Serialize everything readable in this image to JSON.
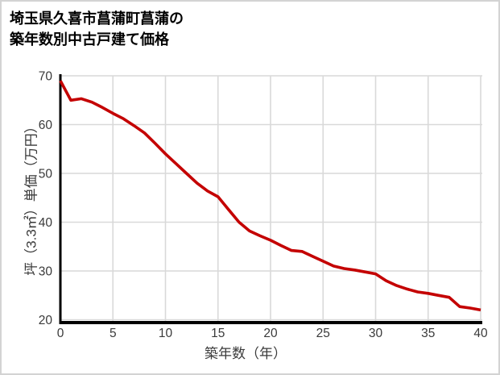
{
  "page": {
    "title_line1": "埼玉県久喜市菖蒲町菖蒲の",
    "title_line2": "築年数別中古戸建て価格"
  },
  "chart_data": {
    "type": "line",
    "title": "埼玉県久喜市菖蒲町菖蒲の築年数別中古戸建て価格",
    "xlabel": "築年数（年）",
    "ylabel": "坪（3.3㎡）単価（万円）",
    "x": [
      0,
      1,
      2,
      3,
      4,
      5,
      6,
      7,
      8,
      9,
      10,
      11,
      12,
      13,
      14,
      15,
      16,
      17,
      18,
      19,
      20,
      21,
      22,
      23,
      24,
      25,
      26,
      27,
      28,
      29,
      30,
      31,
      32,
      33,
      34,
      35,
      36,
      37,
      38,
      39,
      40
    ],
    "values": [
      69,
      65,
      65.3,
      64.6,
      63.5,
      62.3,
      61.2,
      59.8,
      58.3,
      56.2,
      54,
      52,
      50,
      48,
      46.4,
      45.2,
      42.6,
      40,
      38.2,
      37.2,
      36.3,
      35.2,
      34.2,
      34,
      33,
      32,
      31,
      30.5,
      30.2,
      29.8,
      29.4,
      28,
      27,
      26.3,
      25.7,
      25.4,
      25,
      24.6,
      22.7,
      22.4,
      22
    ],
    "xlim": [
      0,
      40
    ],
    "ylim": [
      20,
      70
    ],
    "x_ticks": [
      0,
      5,
      10,
      15,
      20,
      25,
      30,
      35,
      40
    ],
    "y_ticks": [
      20,
      30,
      40,
      50,
      60,
      70
    ],
    "grid": true,
    "legend": false,
    "line_color": "#c40000",
    "axis_color": "#000000",
    "grid_color": "#d9d9d9",
    "text_color": "#3a3a3a"
  }
}
